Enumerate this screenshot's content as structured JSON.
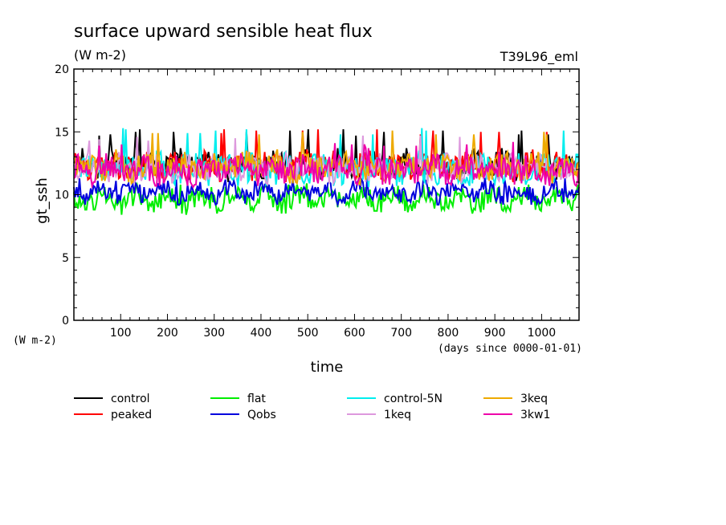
{
  "chart_data": {
    "type": "line",
    "title": "surface upward sensible heat flux",
    "units": "(W m-2)",
    "run_label": "T39L96_eml",
    "ylabel": "gt_ssh",
    "y_units": "(W m-2)",
    "xlabel": "time",
    "x_units": "(days since 0000-01-01)",
    "xlim": [
      0,
      1080
    ],
    "ylim": [
      0,
      20
    ],
    "x_ticks": [
      100,
      200,
      300,
      400,
      500,
      600,
      700,
      800,
      900,
      1000
    ],
    "y_ticks": [
      0,
      5,
      10,
      15,
      20
    ],
    "grid": false,
    "legend_position": "bottom",
    "series": [
      {
        "name": "control",
        "color": "#000000",
        "mean": 12.4,
        "amp": 1.0,
        "spike": 15.2,
        "x": [],
        "values": []
      },
      {
        "name": "peaked",
        "color": "#ff0000",
        "mean": 12.3,
        "amp": 1.0,
        "spike": 15.3,
        "x": [],
        "values": []
      },
      {
        "name": "flat",
        "color": "#00ee00",
        "mean": 9.6,
        "amp": 0.8,
        "spike": 11.0,
        "x": [],
        "values": []
      },
      {
        "name": "Qobs",
        "color": "#0000dd",
        "mean": 10.2,
        "amp": 0.7,
        "spike": 11.5,
        "x": [],
        "values": []
      },
      {
        "name": "control-5N",
        "color": "#00eeee",
        "mean": 12.0,
        "amp": 1.1,
        "spike": 15.3,
        "x": [],
        "values": []
      },
      {
        "name": "1keq",
        "color": "#dd99dd",
        "mean": 12.1,
        "amp": 0.9,
        "spike": 14.8,
        "x": [],
        "values": []
      },
      {
        "name": "3keq",
        "color": "#eeaa00",
        "mean": 12.2,
        "amp": 1.0,
        "spike": 15.2,
        "x": [],
        "values": []
      },
      {
        "name": "3kw1",
        "color": "#ee00aa",
        "mean": 12.0,
        "amp": 1.0,
        "spike": 14.2,
        "x": [],
        "values": []
      }
    ]
  }
}
